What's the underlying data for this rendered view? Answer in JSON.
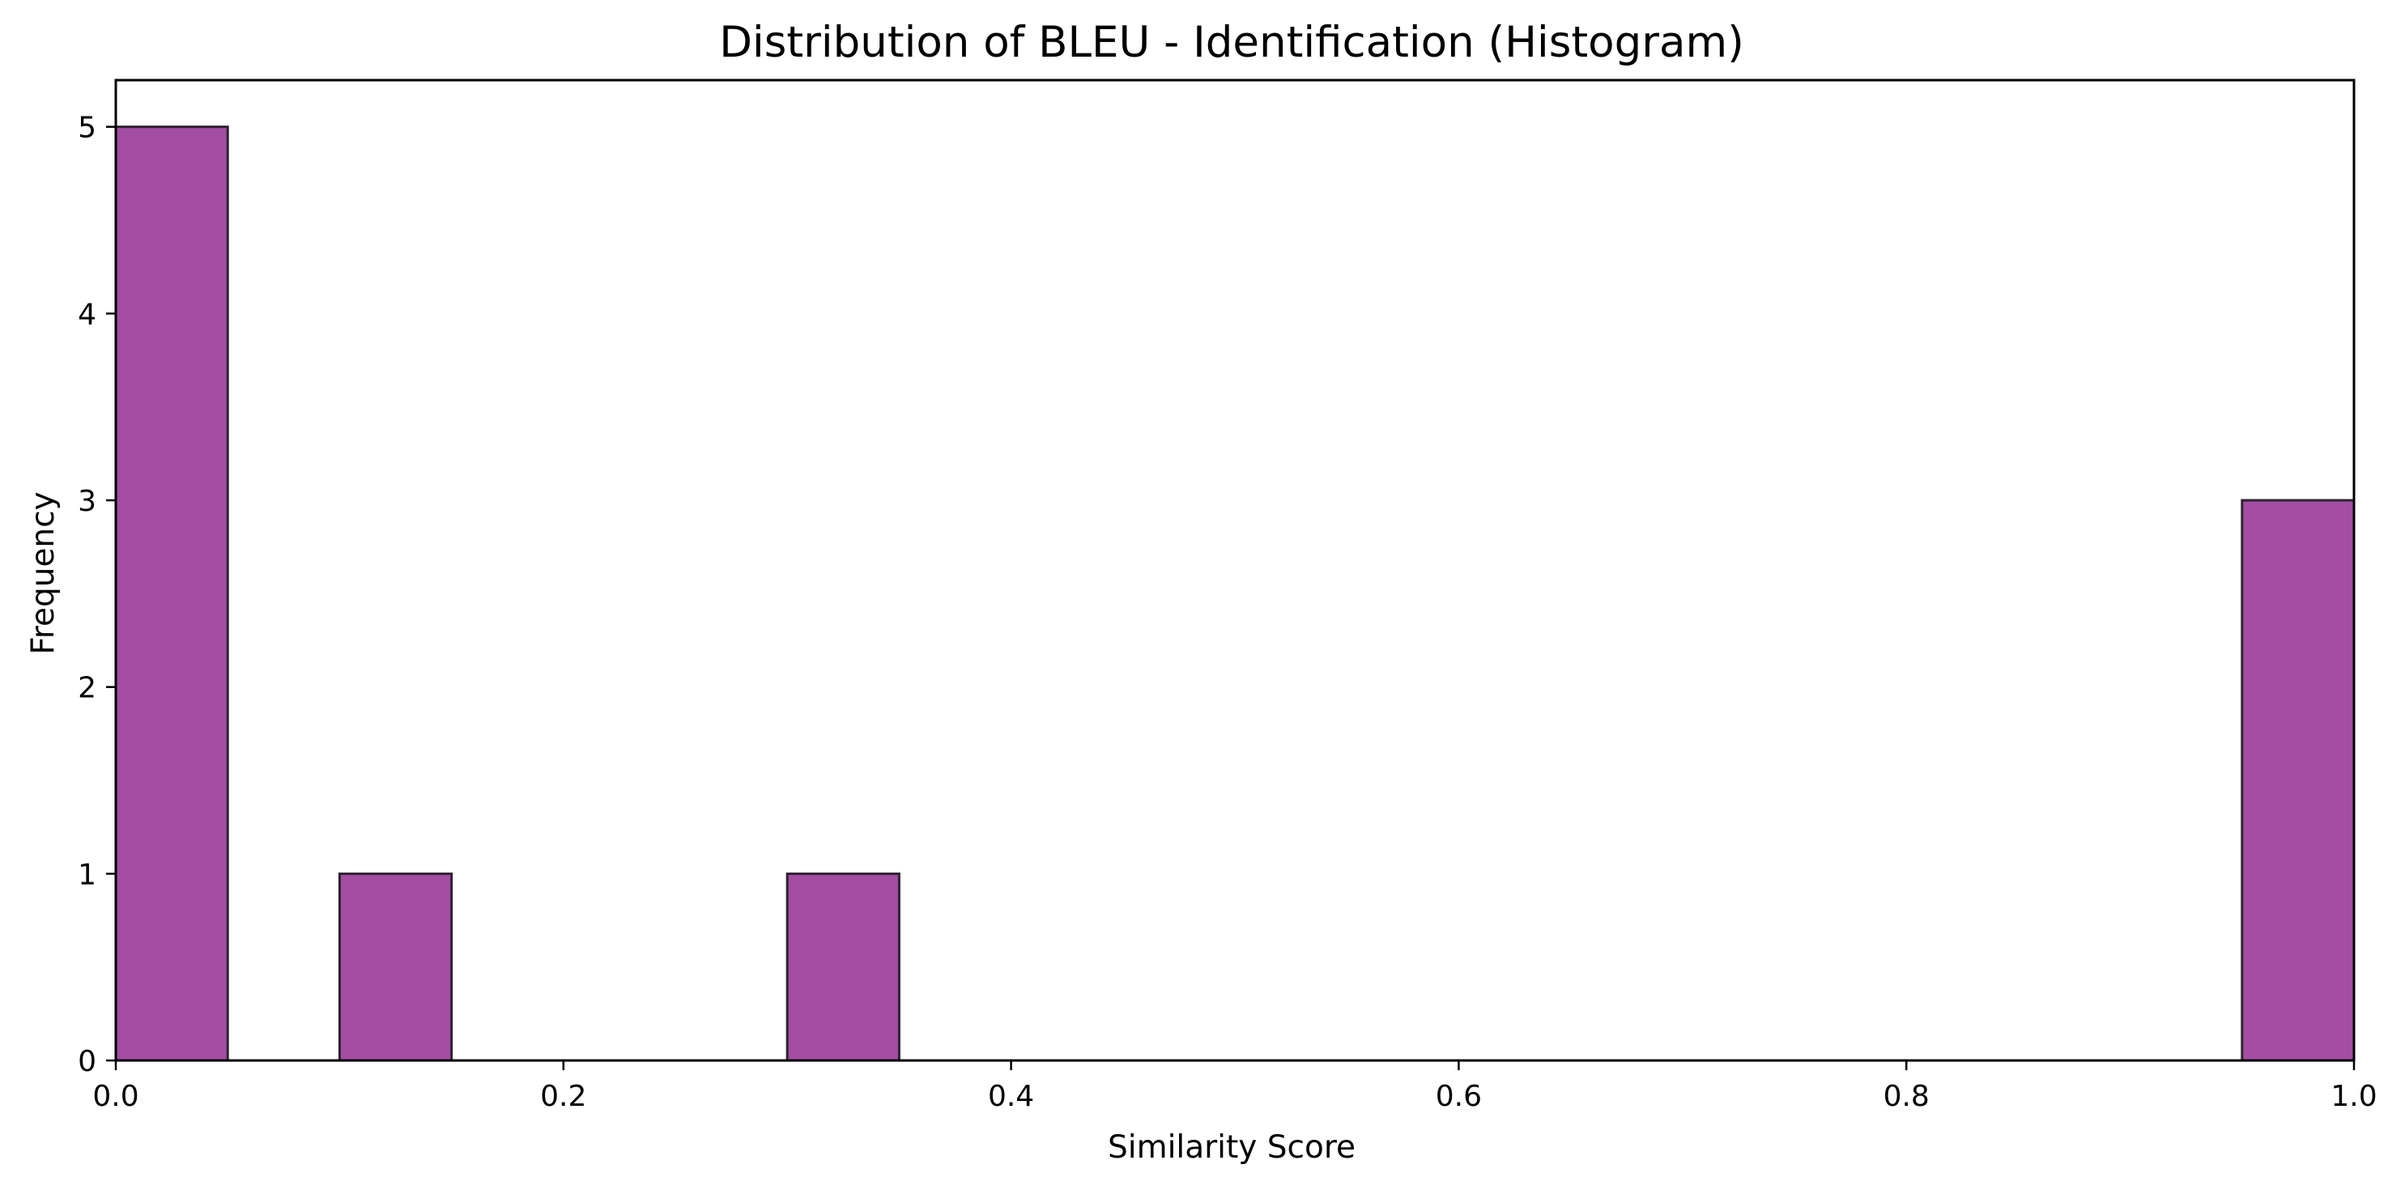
{
  "chart_data": {
    "type": "bar",
    "title": "Distribution of BLEU - Identification (Histogram)",
    "xlabel": "Similarity Score",
    "ylabel": "Frequency",
    "xlim": [
      0.0,
      1.0
    ],
    "ylim": [
      0,
      5.25
    ],
    "x_ticks": [
      "0.0",
      "0.2",
      "0.4",
      "0.6",
      "0.8",
      "1.0"
    ],
    "y_ticks": [
      "0",
      "1",
      "2",
      "3",
      "4",
      "5"
    ],
    "bins": [
      {
        "start": 0.0,
        "end": 0.05,
        "count": 5
      },
      {
        "start": 0.1,
        "end": 0.15,
        "count": 1
      },
      {
        "start": 0.3,
        "end": 0.35,
        "count": 1
      },
      {
        "start": 0.95,
        "end": 1.0,
        "count": 3
      }
    ],
    "bar_color": "#a34da3",
    "edge_color": "#2e2230",
    "grid": false
  }
}
